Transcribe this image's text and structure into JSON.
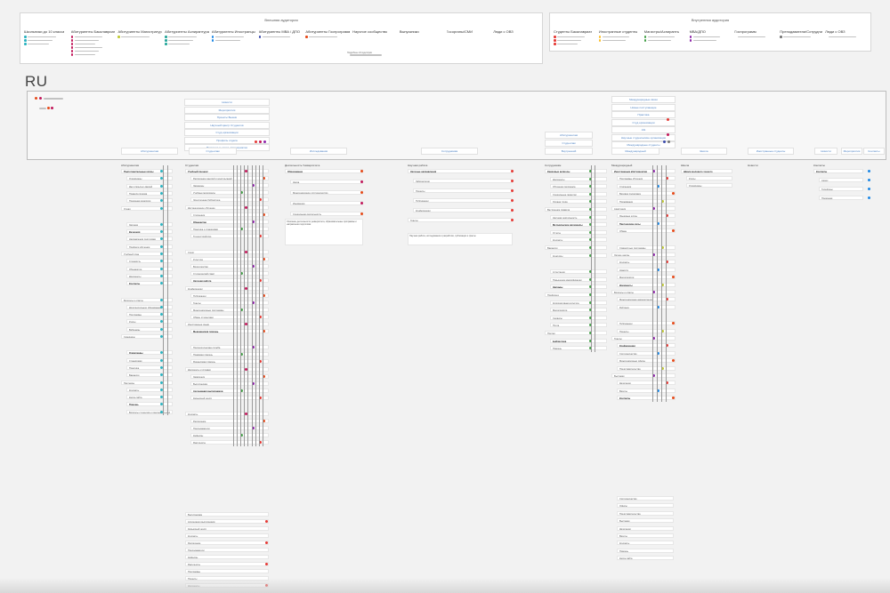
{
  "external": {
    "title": "Внешняя аудитория",
    "columns": [
      {
        "label": "Школьники до 10 класса",
        "color": "#2bb3c0"
      },
      {
        "label": "Абитуриенты Бакалавриат",
        "color": "#c2185b"
      },
      {
        "label": "Абитуриенты Магистратура",
        "color": "#c0ca33"
      },
      {
        "label": "Абитуриенты Аспирантура",
        "color": "#26a69a"
      },
      {
        "label": "Абитуриенты Иностранцы",
        "color": "#1e88e5"
      },
      {
        "label": "Абитуриенты МВА / ДПО",
        "color": "#3949ab"
      },
      {
        "label": "Абитуриенты Госпрограмм",
        "color": "#e64a19"
      },
      {
        "label": "Научное сообщество",
        "color": ""
      },
      {
        "label": "Выпускники",
        "color": ""
      },
      {
        "label": "Госорганы/СМИ",
        "color": ""
      },
      {
        "label": "Люди с ОВЗ",
        "color": ""
      }
    ]
  },
  "internal": {
    "title": "Внутренняя аудитория",
    "columns": [
      {
        "label": "Студенты Бакалавриат",
        "color": "#e53935"
      },
      {
        "label": "Иностранные студенты",
        "color": "#fbc02d"
      },
      {
        "label": "Магистры/Аспиранты",
        "color": "#43a047"
      },
      {
        "label": "МВА/ДПО",
        "color": "#8e24aa"
      },
      {
        "label": "Госпрограмм",
        "color": ""
      },
      {
        "label": "Преподаватели/Сотрудники",
        "color": "#757575"
      },
      {
        "label": "Люди с ОВЗ",
        "color": ""
      }
    ]
  },
  "section_label": "RU",
  "top_cards_mid": [
    "Новости",
    "Мероприятия",
    "Проекты Вышки",
    "Научный Центр Студентов",
    "Студ.организации",
    "Профиль отдела",
    "Временные отдел. /мероприятия"
  ],
  "top_cards_right": [
    "Международные связи",
    "Новые поступающие",
    "Практика",
    "Студ.организации",
    "Abt",
    "Научные студенческие организации",
    "Международные студенты"
  ],
  "nav_row": [
    "Абитуриентам",
    "Студентам",
    "Исследования",
    "Сотрудникам",
    "Внутренний",
    "Международный",
    "Школа",
    "Иностранные студенты",
    "Новости",
    "Мероприятия",
    "Контакты"
  ],
  "col1": {
    "title": "Абитуриентам",
    "items": [
      "Подготовительные курсы",
      "Олимпиады",
      "Дни открытых дверей",
      "Правила приема",
      "Приемная комиссия",
      "Очная",
      "Заочная",
      "Вечерняя",
      "Направления подготовки",
      "Профили обучения",
      "Учебный план",
      "Стоимость",
      "Общежитие",
      "Документы",
      "Контакты",
      "Вопросы и ответы",
      "Дополнительное образование",
      "Программы",
      "Курсы",
      "Вебинары",
      "Семинары",
      "Олимпиады",
      "Стажировки",
      "Практика",
      "Вакансии",
      "Партнеры",
      "Контакты",
      "Карта сайта",
      "Помощь",
      "Вопросы студентов и преподавателей"
    ]
  },
  "col2": {
    "title": "Студентам",
    "items": [
      "Учебный процесс",
      "Расписание занятий и консультаций",
      "Экзамены",
      "Учебные материалы",
      "Электронная библиотека",
      "Дистанционное обучение",
      "Стипендии",
      "Общежитие",
      "Практика и стажировки",
      "Трудоустройство",
      "Спорт",
      "Культура",
      "Волонтерство",
      "Студенческий совет",
      "Научная работа",
      "Конференции",
      "Публикации",
      "Гранты",
      "Международные программы",
      "Обмен студентами",
      "Иностранные языки",
      "Медицинская помощь",
      "Психологическая служба",
      "Правовая помощь",
      "Финансовая помощь",
      "Документы и справки",
      "Заявления",
      "Выпускникам",
      "Ассоциация выпускников",
      "Карьерный центр",
      "Контакты",
      "Расписание",
      "Преподаватели",
      "Кафедры",
      "Факультеты"
    ]
  },
  "col3": {
    "title": "Деятельность Университета",
    "items": [
      "Образование",
      "Наука",
      "Международное сотрудничество",
      "Инновации",
      "Социальная деятельность",
      "Устойчивое развитие"
    ]
  },
  "col4": {
    "title": "Научная работа",
    "items": [
      "Научные направления",
      "Лаборатории",
      "Проекты",
      "Публикации",
      "Конференции",
      "Гранты"
    ]
  },
  "col5": {
    "title": "Сотрудникам",
    "items": [
      "Кадровые вопросы",
      "Документы",
      "Обучение персонала",
      "Социальные гарантии",
      "Охрана труда",
      "Внутренние правила",
      "Научная деятельность",
      "Методические материалы",
      "Отчеты",
      "Контакты",
      "Вакансии",
      "Конкурсы",
      "Аттестация",
      "Повышение квалификации",
      "Награды",
      "Профсоюз",
      "Корпоративная культура",
      "Мероприятия",
      "Сервисы",
      "Почта",
      "Портал",
      "Библиотека",
      "Помощь"
    ]
  },
  "col6": {
    "title": "Международный",
    "items": [
      "Иностранным абитуриентам",
      "Программы обучения",
      "Стипендии",
      "Визовая поддержка",
      "Проживание",
      "Адаптация",
      "Языковые курсы",
      "Партнерские вузы",
      "Обмен",
      "Совместные программы",
      "Летние школы",
      "Контакты",
      "Новости",
      "Мероприятия",
      "Документы",
      "Вопросы и ответы",
      "Международная аккредитация",
      "Рейтинги",
      "Публикации",
      "Проекты",
      "Гранты",
      "Конференции",
      "Сотрудничество",
      "Международные офисы",
      "Представительства",
      "Выставки",
      "Делегации",
      "Визиты",
      "Контакты"
    ]
  },
  "col7": {
    "title": "Школа",
    "items": [
      "Школа молодого ученого",
      "Курсы",
      "Олимпиады"
    ]
  },
  "col8": {
    "title": "Новости"
  },
  "col9": {
    "title": "Контакты",
    "items": [
      "Контакты",
      "Адрес",
      "Телефоны",
      "Приемная"
    ]
  },
  "external_note": "Подробнее об аудитории",
  "text_block_a": "Описание деятельности университета, образовательные программы и направления подготовки",
  "text_block_b": "Научная работа, исследования и разработки, публикации и гранты"
}
